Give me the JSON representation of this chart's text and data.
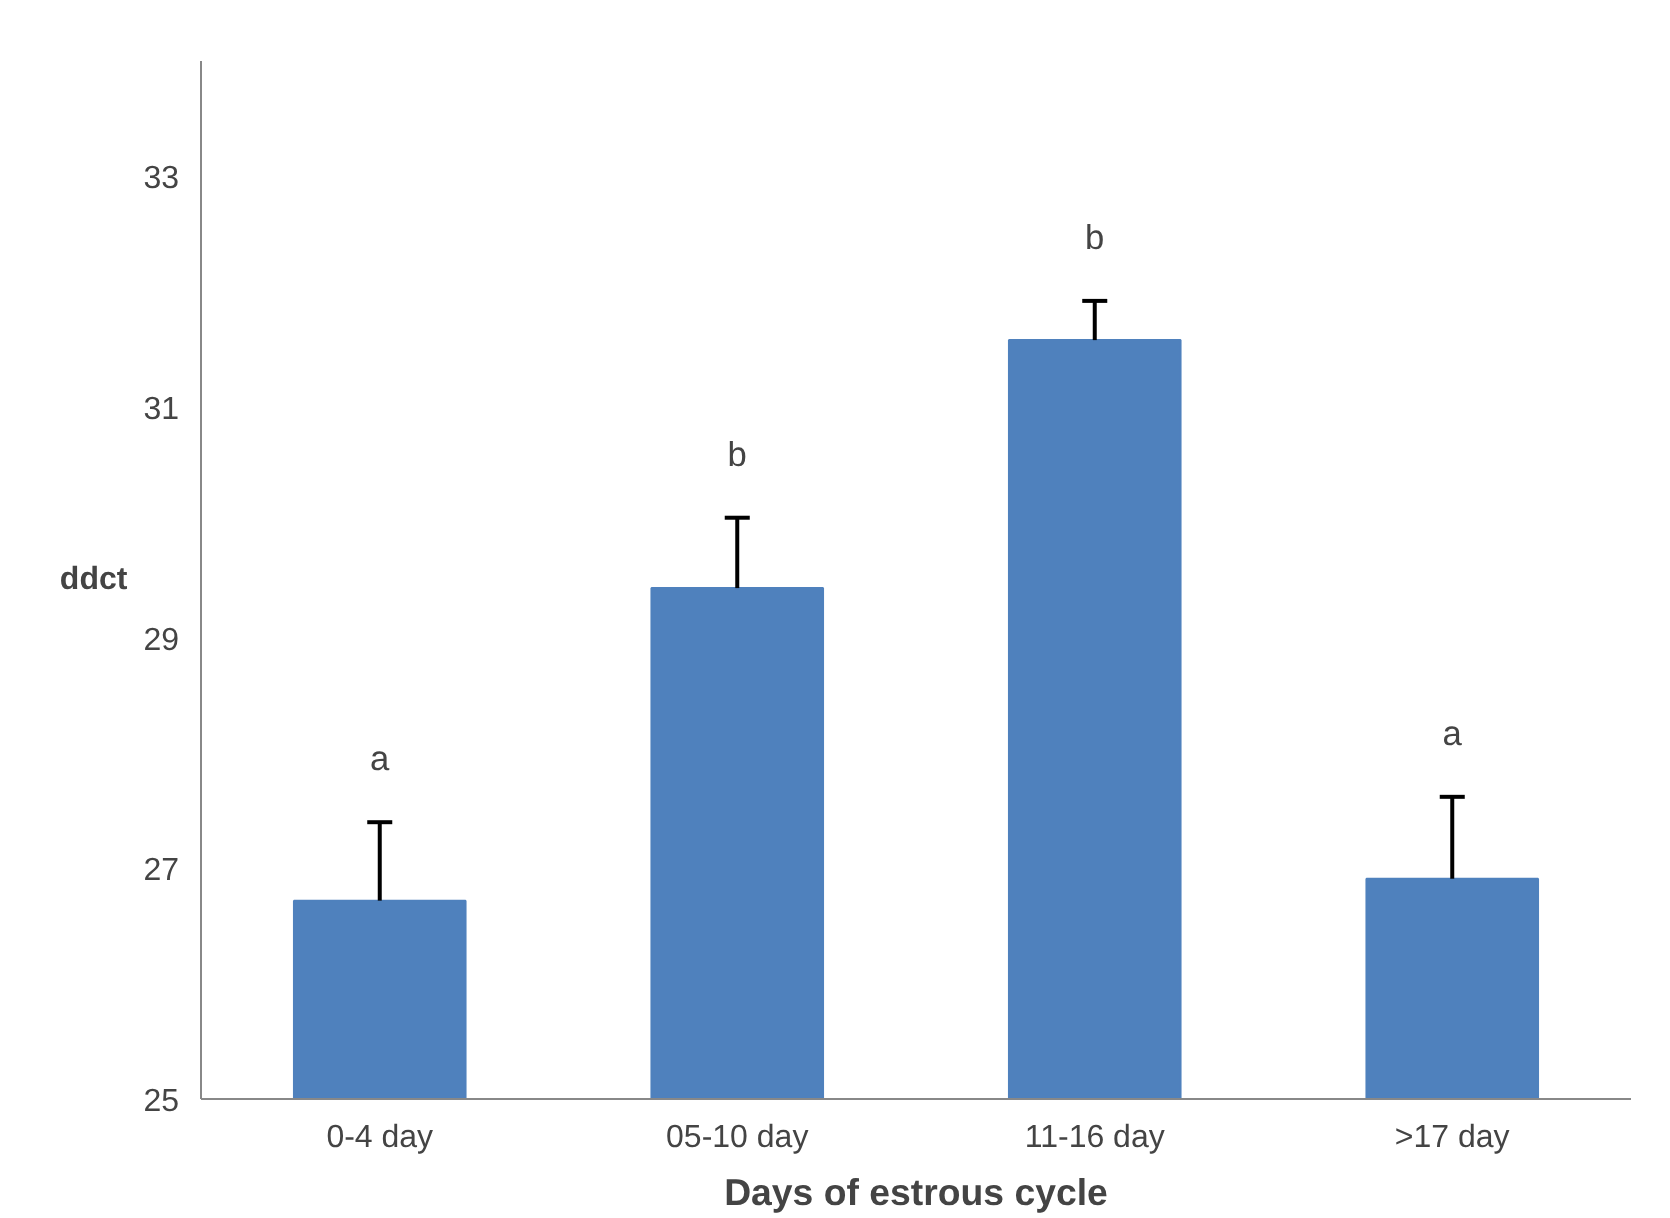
{
  "chart_data": {
    "type": "bar",
    "xlabel": "Days of estrous cycle",
    "ylabel": "ddct",
    "categories": [
      "0-4 day",
      "05-10 day",
      "11-16 day",
      ">17 day"
    ],
    "values": [
      26.72,
      29.43,
      31.58,
      26.91
    ],
    "color": "#4f81bd",
    "errors": [
      [
        26.72,
        27.4
      ],
      [
        29.43,
        30.04
      ],
      [
        31.58,
        31.92
      ],
      [
        26.91,
        27.62
      ]
    ],
    "ylim": [
      25,
      34
    ],
    "yticks": [
      25,
      27,
      29,
      31,
      33
    ],
    "grid": false,
    "annotations": [
      "a",
      "b",
      "b",
      "a"
    ]
  }
}
